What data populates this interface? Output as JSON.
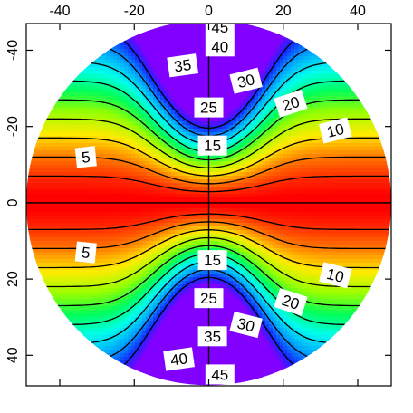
{
  "chart_data": {
    "type": "heatmap",
    "title": "",
    "xlabel": "",
    "ylabel": "",
    "xlim": [
      -49,
      49
    ],
    "ylim": [
      -47,
      48
    ],
    "y_axis_inverted": true,
    "x_ticks": [
      {
        "value": -40,
        "label": "-40"
      },
      {
        "value": -20,
        "label": "-20"
      },
      {
        "value": 0,
        "label": "0"
      },
      {
        "value": 20,
        "label": "20"
      },
      {
        "value": 40,
        "label": "40"
      }
    ],
    "y_ticks": [
      {
        "value": -40,
        "label": "-40"
      },
      {
        "value": -20,
        "label": "-20"
      },
      {
        "value": 0,
        "label": "0"
      },
      {
        "value": 20,
        "label": "20"
      },
      {
        "value": 40,
        "label": "40"
      }
    ],
    "colormap": "rainbow (red low, violet high)",
    "color_range": [
      0,
      50
    ],
    "circular_domain_radius": 49,
    "contour_levels": [
      5,
      10,
      15,
      20,
      25,
      30,
      35,
      40,
      45
    ],
    "contour_labels": [
      {
        "text": "45",
        "x": 3,
        "y": -46,
        "angle": 0
      },
      {
        "text": "40",
        "x": 3,
        "y": -41,
        "angle": 0
      },
      {
        "text": "35",
        "x": -7,
        "y": -36,
        "angle": -8
      },
      {
        "text": "30",
        "x": 10,
        "y": -32,
        "angle": -14
      },
      {
        "text": "25",
        "x": 0,
        "y": -25,
        "angle": 0
      },
      {
        "text": "20",
        "x": 22,
        "y": -26,
        "angle": -18
      },
      {
        "text": "10",
        "x": 34,
        "y": -19,
        "angle": -14
      },
      {
        "text": "15",
        "x": 1,
        "y": -15,
        "angle": 0
      },
      {
        "text": "5",
        "x": -33,
        "y": -12,
        "angle": -6
      },
      {
        "text": "5",
        "x": -33,
        "y": 13,
        "angle": 6
      },
      {
        "text": "15",
        "x": 1,
        "y": 15,
        "angle": 0
      },
      {
        "text": "10",
        "x": 34,
        "y": 19,
        "angle": 14
      },
      {
        "text": "20",
        "x": 22,
        "y": 26,
        "angle": 18
      },
      {
        "text": "25",
        "x": 0,
        "y": 25,
        "angle": 0
      },
      {
        "text": "30",
        "x": 10,
        "y": 32,
        "angle": 14
      },
      {
        "text": "35",
        "x": 1,
        "y": 35,
        "angle": 0
      },
      {
        "text": "40",
        "x": -8,
        "y": 41,
        "angle": -8
      },
      {
        "text": "45",
        "x": 3,
        "y": 45,
        "angle": 0
      }
    ],
    "crosshair": {
      "x": 0,
      "y": 0
    }
  }
}
